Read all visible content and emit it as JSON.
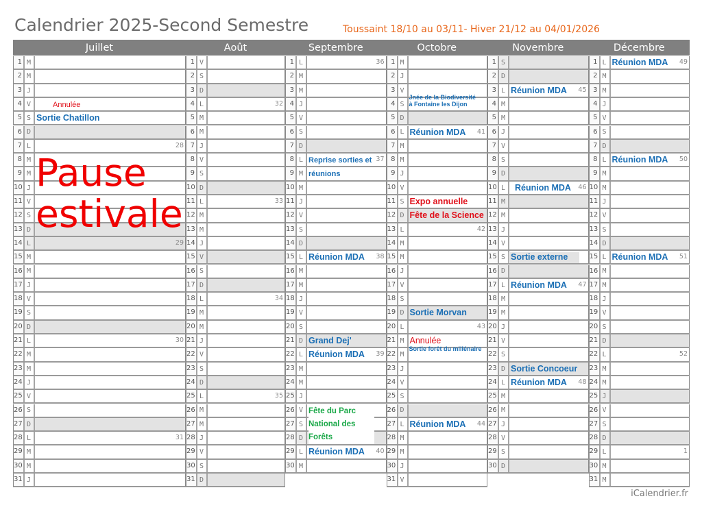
{
  "title": "Calendrier 2025-Second Semestre",
  "subtitle": "Toussaint 18/10 au 03/11- Hiver 21/12 au 04/01/2026",
  "footer": "iCalendrier.fr",
  "overlay": {
    "line1": "Pause",
    "line2": "estivale",
    "color": "#f00000"
  },
  "colors": {
    "blue": "#1b6fb5",
    "red": "#e0101a",
    "green": "#1aa848",
    "header": "#808080",
    "shade": "#e3e3e3",
    "subtitle": "#e8661a"
  },
  "months": [
    {
      "name": "Juillet",
      "letters": "MMJVSDLMMJVSDLMMJVSDLMMJVSDLMMJ",
      "holidays": [
        14
      ],
      "weeks": {
        "7": "28",
        "14": "29",
        "21": "30",
        "28": "31"
      },
      "events": [
        {
          "day": 4,
          "text": "Annulée",
          "color": "red",
          "style": "small",
          "dx": 58
        },
        {
          "day": 5,
          "text": "Sortie Chatillon",
          "color": "blue",
          "style": "mda"
        }
      ]
    },
    {
      "name": "Août",
      "letters": "VSDLMMJVSDLMMJVSDLMMJVSDLMMJVSD",
      "holidays": [
        15
      ],
      "weeks": {
        "4": "32",
        "11": "33",
        "18": "34",
        "25": "35"
      },
      "events": []
    },
    {
      "name": "Septembre",
      "letters": "LMMJVSDLMMJVSDLMMJVSDLMMJVSDLM",
      "holidays": [],
      "weeks": {
        "1": "36",
        "8": "37",
        "15": "38",
        "22": "39",
        "29": "40"
      },
      "events": [
        {
          "day": 8,
          "text": "Reprise sorties     et",
          "color": "blue",
          "style": "small",
          "bold": true
        },
        {
          "day": 9,
          "text": "réunions",
          "color": "blue",
          "style": "small",
          "bold": true
        },
        {
          "day": 15,
          "text": "Réunion MDA",
          "color": "blue",
          "style": "mda"
        },
        {
          "day": 21,
          "text": "Grand Dej'",
          "color": "blue",
          "style": "mda"
        },
        {
          "day": 22,
          "text": "Réunion MDA",
          "color": "blue",
          "style": "mda"
        },
        {
          "day": 26,
          "text": "Fête du Parc National des Forêts",
          "color": "green",
          "style": "green"
        },
        {
          "day": 29,
          "text": "Réunion MDA",
          "color": "blue",
          "style": "mda"
        }
      ]
    },
    {
      "name": "Octobre",
      "letters": "MJVSDLMMJVSDLMMJVSDLMMJVSDLMMJV",
      "holidays": [],
      "weeks": {
        "6": "41",
        "13": "42",
        "20": "43",
        "27": "44"
      },
      "events": [
        {
          "day": 3,
          "text": "Jnée de la Biodiversité",
          "color": "blue",
          "style": "tiny",
          "dy": 14
        },
        {
          "day": 4,
          "text": "à Fontaine les Dijon",
          "color": "blue",
          "style": "tiny",
          "dy": 4
        },
        {
          "day": 6,
          "text": "Réunion MDA",
          "color": "blue",
          "style": "mda"
        },
        {
          "day": 11,
          "text": "Expo annuelle",
          "color": "red",
          "style": "mda"
        },
        {
          "day": 12,
          "text": "Fête de la Science",
          "color": "red",
          "style": "mda"
        },
        {
          "day": 19,
          "text": "Sortie Morvan",
          "color": "blue",
          "style": "mda"
        },
        {
          "day": 21,
          "text": "Annulée",
          "color": "red",
          "style": "mda",
          "light": true
        },
        {
          "day": 22,
          "text": "Sortie forêt du millénaire",
          "color": "blue",
          "style": "tiny",
          "dy": -4,
          "dx": 26
        },
        {
          "day": 27,
          "text": "Réunion MDA",
          "color": "blue",
          "style": "mda"
        }
      ]
    },
    {
      "name": "Novembre",
      "letters": "SDLMMJVSDLMMJVSDLMMJVSDLMMJVSD",
      "holidays": [
        1,
        11
      ],
      "weeks": {
        "3": "45",
        "10": "46",
        "17": "47",
        "24": "48"
      },
      "events": [
        {
          "day": 3,
          "text": "Réunion MDA",
          "color": "blue",
          "style": "mda"
        },
        {
          "day": 10,
          "text": "Réunion MDA",
          "color": "blue",
          "style": "mda",
          "dx": 40
        },
        {
          "day": 15,
          "text": "Sortie externe",
          "color": "blue",
          "style": "mda",
          "partial": true
        },
        {
          "day": 17,
          "text": "Réunion MDA",
          "color": "blue",
          "style": "mda"
        },
        {
          "day": 23,
          "text": "Sortie Concoeur",
          "color": "blue",
          "style": "mda"
        },
        {
          "day": 24,
          "text": "Réunion MDA",
          "color": "blue",
          "style": "mda"
        }
      ]
    },
    {
      "name": "Décembre",
      "letters": "LMMJVSDLMMJVSDLMMJVSDLMMJVSDLMM",
      "holidays": [
        25
      ],
      "weeks": {
        "1": "49",
        "8": "50",
        "15": "51",
        "22": "52",
        "29": "1"
      },
      "events": [
        {
          "day": 1,
          "text": "Réunion MDA",
          "color": "blue",
          "style": "mda"
        },
        {
          "day": 8,
          "text": "Réunion MDA",
          "color": "blue",
          "style": "mda"
        },
        {
          "day": 15,
          "text": "Réunion MDA",
          "color": "blue",
          "style": "mda"
        }
      ]
    }
  ]
}
